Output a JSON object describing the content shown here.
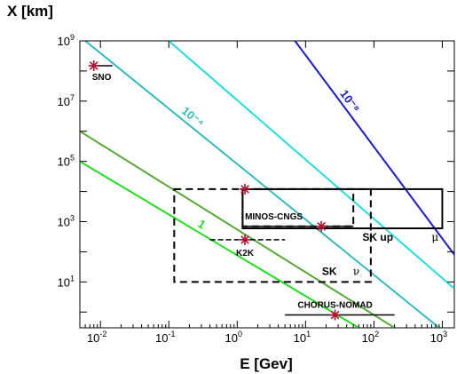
{
  "chart_data": {
    "type": "line",
    "title": "",
    "xlabel": "E [Gev]",
    "ylabel": "X [km]",
    "xscale": "log",
    "yscale": "log",
    "xlim": [
      0.005,
      1500
    ],
    "ylim": [
      0.3,
      1000000000
    ],
    "x_ticks": [
      {
        "mant": "10",
        "exp": "-2"
      },
      {
        "mant": "10",
        "exp": "-1"
      },
      {
        "mant": "10",
        "exp": "0"
      },
      {
        "mant": "10",
        "exp": "1"
      },
      {
        "mant": "10",
        "exp": "2"
      },
      {
        "mant": "10",
        "exp": "3"
      }
    ],
    "y_ticks": [
      {
        "mant": "10",
        "exp": "1"
      },
      {
        "mant": "10",
        "exp": "3"
      },
      {
        "mant": "10",
        "exp": "5"
      },
      {
        "mant": "10",
        "exp": "7"
      },
      {
        "mant": "10",
        "exp": "9"
      }
    ],
    "x_tick_values": [
      0.01,
      0.1,
      1,
      10,
      100,
      1000
    ],
    "y_tick_values": [
      10,
      1000,
      100000,
      10000000,
      1000000000
    ],
    "bands": [
      {
        "label": "1",
        "color": "#22dd22",
        "x": [
          0.005,
          60
        ],
        "y": [
          100000,
          0.3
        ]
      },
      {
        "label": "",
        "color": "#5aa83c",
        "x": [
          0.005,
          200
        ],
        "y": [
          1000000,
          0.3
        ]
      },
      {
        "label": "10⁻⁴",
        "color": "#33bbbb",
        "x": [
          0.006,
          900
        ],
        "y": [
          1000000000,
          0.3
        ]
      },
      {
        "label": "",
        "color": "#22dddd",
        "x": [
          0.1,
          1500
        ],
        "y": [
          1000000000,
          6
        ]
      },
      {
        "label": "10⁻⁸",
        "color": "#1a1acc",
        "x": [
          7,
          1500
        ],
        "y": [
          1000000000,
          80
        ]
      }
    ],
    "experiments": [
      {
        "name": "SNO",
        "x": 0.008,
        "y": 150000000,
        "range": [
          0.008,
          0.015
        ]
      },
      {
        "name": "K2K",
        "x": 1.3,
        "y": 250,
        "range": [
          0.4,
          5
        ]
      },
      {
        "name": "MINOS-CNGS",
        "x": 17,
        "y": 700,
        "range": [
          1.2,
          50
        ]
      },
      {
        "name": "CHORUS-NOMAD",
        "x": 27,
        "y": 0.8,
        "range": [
          5,
          200
        ]
      }
    ],
    "extra_stars": [
      {
        "x": 1.3,
        "y": 12000
      }
    ],
    "regions": [
      {
        "name": "SK ν",
        "label": "SK",
        "greek": "ν",
        "style": "dashed",
        "x": [
          0.12,
          90
        ],
        "y": [
          10,
          12000
        ]
      },
      {
        "name": "SK up μ",
        "label": "SK up",
        "greek": "μ",
        "style": "solid",
        "x": [
          1.2,
          1000
        ],
        "y": [
          600,
          12000
        ]
      },
      {
        "name": "MINOS-CNGS box",
        "label": "",
        "greek": "",
        "style": "dashed",
        "x": [
          1.2,
          50
        ],
        "y": [
          700,
          12000
        ]
      }
    ],
    "grid": false
  }
}
